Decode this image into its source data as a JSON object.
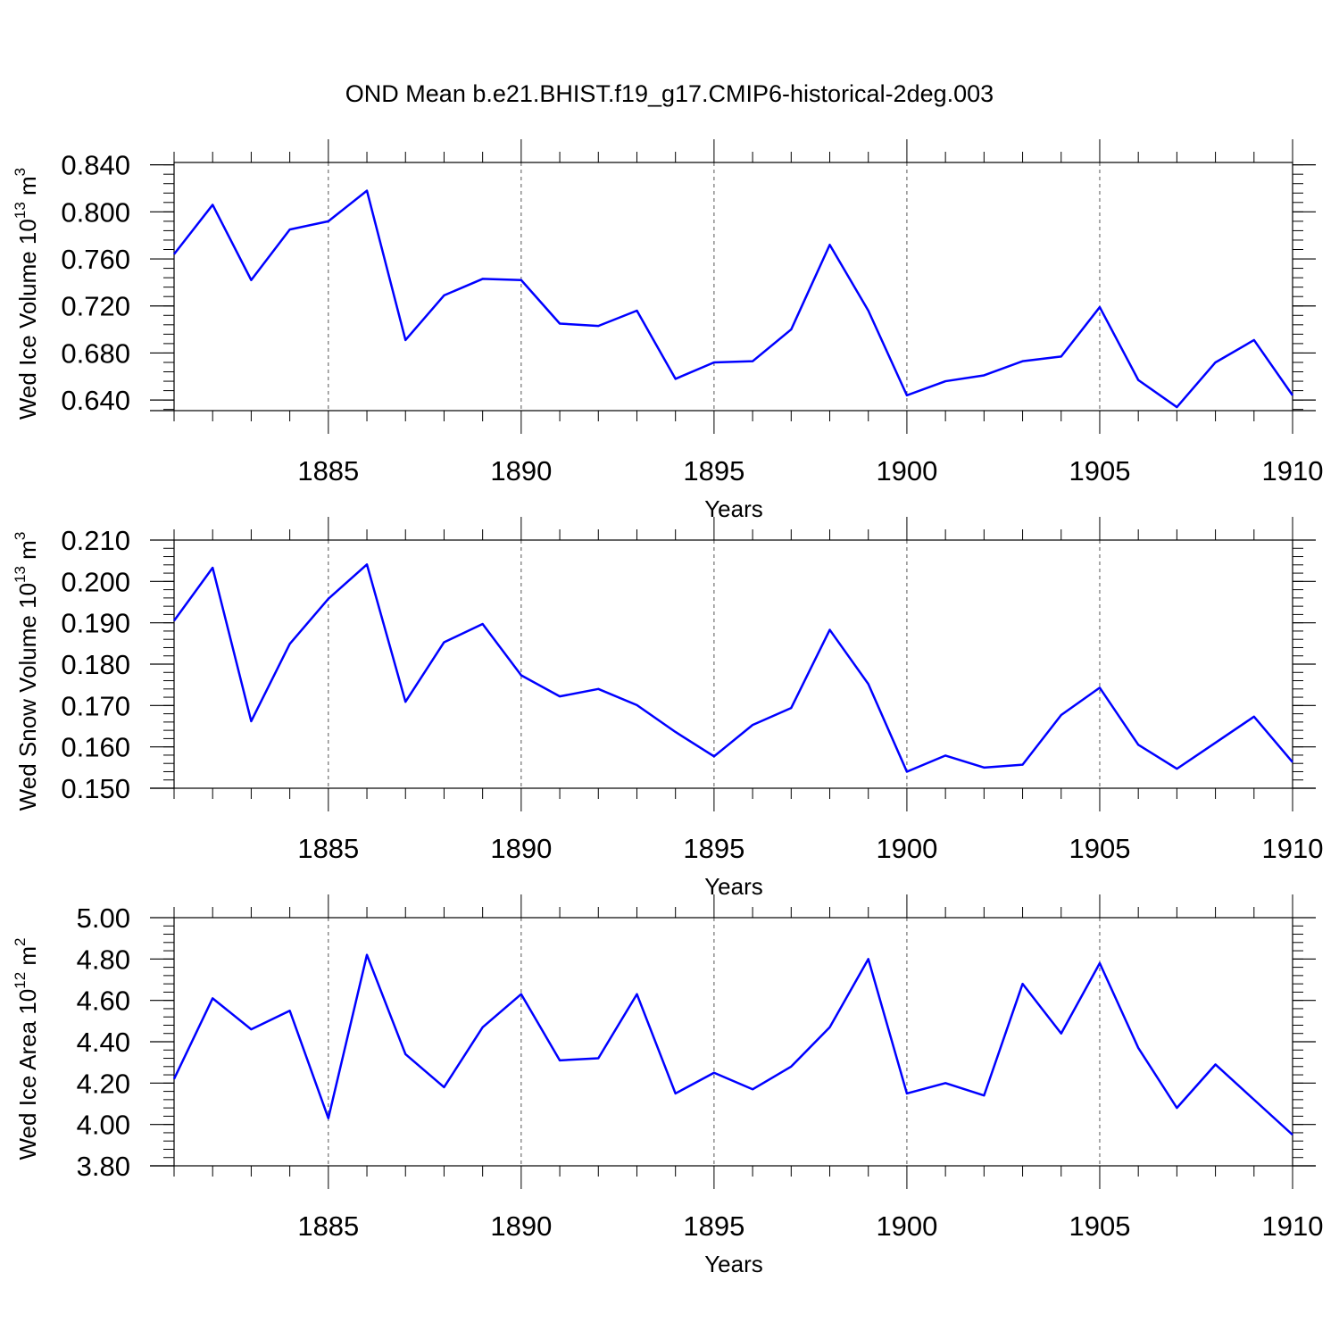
{
  "title": "OND Mean b.e21.BHIST.f19_g17.CMIP6-historical-2deg.003",
  "chart_data": [
    {
      "type": "line",
      "xlabel": "Years",
      "ylabel": "Wed Ice Volume 10",
      "ylabel_sup": "13",
      "ylabel_unit": "m",
      "ylabel_unit_sup": "3",
      "xlim": [
        1881,
        1910
      ],
      "ylim": [
        0.631,
        0.842
      ],
      "yticks": [
        0.64,
        0.68,
        0.72,
        0.76,
        0.8,
        0.84
      ],
      "ytick_labels": [
        "0.640",
        "0.680",
        "0.720",
        "0.760",
        "0.800",
        "0.840"
      ],
      "xticks": [
        1885,
        1890,
        1895,
        1900,
        1905,
        1910
      ],
      "xtick_labels": [
        "1885",
        "1890",
        "1895",
        "1900",
        "1905",
        "1910"
      ],
      "x": [
        1881,
        1882,
        1883,
        1884,
        1885,
        1886,
        1887,
        1888,
        1889,
        1890,
        1891,
        1892,
        1893,
        1894,
        1895,
        1896,
        1897,
        1898,
        1899,
        1900,
        1901,
        1902,
        1903,
        1904,
        1905,
        1906,
        1907,
        1908,
        1909,
        1910
      ],
      "series": [
        {
          "color": "#0000ff",
          "values": [
            0.764,
            0.806,
            0.742,
            0.785,
            0.792,
            0.818,
            0.691,
            0.729,
            0.743,
            0.742,
            0.705,
            0.703,
            0.716,
            0.658,
            0.672,
            0.673,
            0.7,
            0.772,
            0.716,
            0.644,
            0.656,
            0.661,
            0.673,
            0.677,
            0.719,
            0.657,
            0.634,
            0.672,
            0.691,
            0.644
          ]
        }
      ],
      "grid": "dashed vertical at major x ticks"
    },
    {
      "type": "line",
      "xlabel": "Years",
      "ylabel": "Wed Snow Volume 10",
      "ylabel_sup": "13",
      "ylabel_unit": "m",
      "ylabel_unit_sup": "3",
      "xlim": [
        1881,
        1910
      ],
      "ylim": [
        0.15,
        0.21
      ],
      "yticks": [
        0.15,
        0.16,
        0.17,
        0.18,
        0.19,
        0.2,
        0.21
      ],
      "ytick_labels": [
        "0.150",
        "0.160",
        "0.170",
        "0.180",
        "0.190",
        "0.200",
        "0.210"
      ],
      "xticks": [
        1885,
        1890,
        1895,
        1900,
        1905,
        1910
      ],
      "xtick_labels": [
        "1885",
        "1890",
        "1895",
        "1900",
        "1905",
        "1910"
      ],
      "x": [
        1881,
        1882,
        1883,
        1884,
        1885,
        1886,
        1887,
        1888,
        1889,
        1890,
        1891,
        1892,
        1893,
        1894,
        1895,
        1896,
        1897,
        1898,
        1899,
        1900,
        1901,
        1902,
        1903,
        1904,
        1905,
        1906,
        1907,
        1908,
        1909,
        1910
      ],
      "series": [
        {
          "color": "#0000ff",
          "values": [
            0.1905,
            0.2033,
            0.1662,
            0.1849,
            0.1958,
            0.2041,
            0.1709,
            0.1853,
            0.1897,
            0.1773,
            0.1722,
            0.174,
            0.1701,
            0.1636,
            0.1577,
            0.1653,
            0.1694,
            0.1883,
            0.1752,
            0.154,
            0.1579,
            0.155,
            0.1557,
            0.1677,
            0.1743,
            0.1605,
            0.1547,
            0.161,
            0.1673,
            0.1563
          ]
        }
      ],
      "grid": "dashed vertical at major x ticks"
    },
    {
      "type": "line",
      "xlabel": "Years",
      "ylabel": "Wed Ice Area 10",
      "ylabel_sup": "12",
      "ylabel_unit": "m",
      "ylabel_unit_sup": "2",
      "xlim": [
        1881,
        1910
      ],
      "ylim": [
        3.8,
        5.0
      ],
      "yticks": [
        3.8,
        4.0,
        4.2,
        4.4,
        4.6,
        4.8,
        5.0
      ],
      "ytick_labels": [
        "3.80",
        "4.00",
        "4.20",
        "4.40",
        "4.60",
        "4.80",
        "5.00"
      ],
      "xticks": [
        1885,
        1890,
        1895,
        1900,
        1905,
        1910
      ],
      "xtick_labels": [
        "1885",
        "1890",
        "1895",
        "1900",
        "1905",
        "1910"
      ],
      "x": [
        1881,
        1882,
        1883,
        1884,
        1885,
        1886,
        1887,
        1888,
        1889,
        1890,
        1891,
        1892,
        1893,
        1894,
        1895,
        1896,
        1897,
        1898,
        1899,
        1900,
        1901,
        1902,
        1903,
        1904,
        1905,
        1906,
        1907,
        1908,
        1909,
        1910
      ],
      "series": [
        {
          "color": "#0000ff",
          "values": [
            4.22,
            4.61,
            4.46,
            4.55,
            4.03,
            4.82,
            4.34,
            4.18,
            4.47,
            4.63,
            4.31,
            4.32,
            4.63,
            4.15,
            4.25,
            4.17,
            4.28,
            4.47,
            4.8,
            4.15,
            4.2,
            4.14,
            4.68,
            4.44,
            4.78,
            4.37,
            4.08,
            4.29,
            4.12,
            3.95
          ]
        }
      ],
      "grid": "dashed vertical at major x ticks"
    }
  ]
}
